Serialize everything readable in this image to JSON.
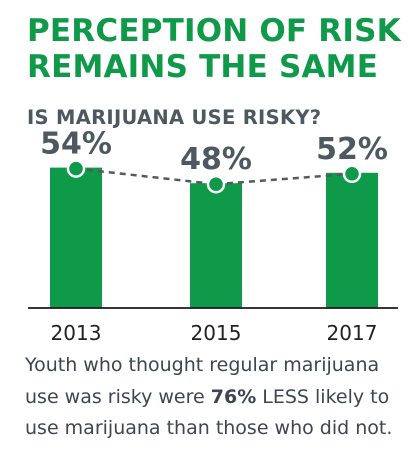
{
  "title": [
    "PERCEPTION OF RISK",
    "REMAINS THE SAME"
  ],
  "subtitle": "IS MARIJUANA USE RISKY?",
  "caption": {
    "before": "Youth who thought regular marijuana use was risky were ",
    "emphasis": "76%",
    "after": " LESS likely to use marijuana than those who did not."
  },
  "colors": {
    "accent": "#0f9a4a",
    "text": "#4d5860",
    "axis": "#1a1a1a",
    "dash": "#555a5e"
  },
  "chart_data": {
    "type": "bar",
    "categories": [
      "2013",
      "2015",
      "2017"
    ],
    "values": [
      54,
      48,
      52
    ],
    "value_labels": [
      "54%",
      "48%",
      "52%"
    ],
    "ylim": [
      0,
      60
    ],
    "grid": false,
    "legend": "none",
    "overlay": "dashed line with circle markers at bar tops"
  }
}
